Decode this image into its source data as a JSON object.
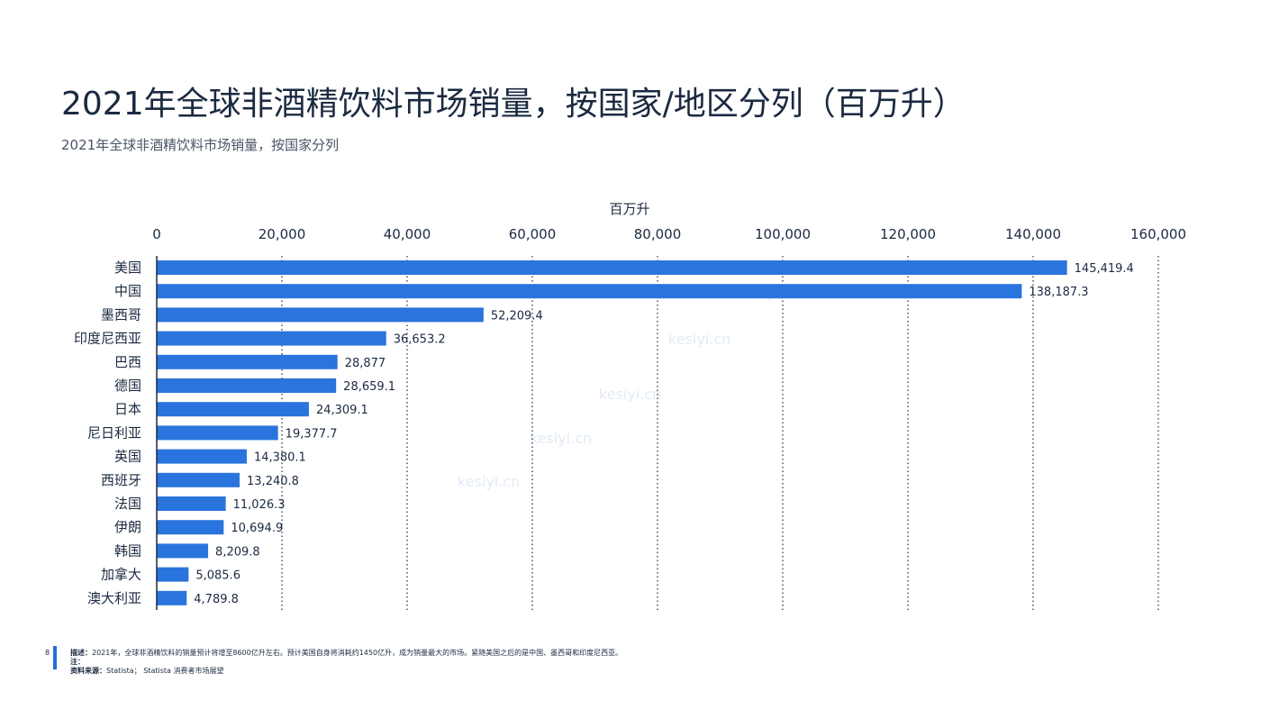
{
  "title": "2021年全球非酒精饮料市场销量，按国家/地区分列（百万升）",
  "subtitle": "2021年全球非酒精饮料市场销量，按国家分列",
  "chart_data": {
    "type": "bar",
    "orientation": "horizontal",
    "xlabel": "百万升",
    "xlim": [
      0,
      160000
    ],
    "xticks": [
      0,
      20000,
      40000,
      60000,
      80000,
      100000,
      120000,
      140000,
      160000
    ],
    "xtick_labels": [
      "0",
      "20,000",
      "40,000",
      "60,000",
      "80,000",
      "100,000",
      "120,000",
      "140,000",
      "160,000"
    ],
    "grid": "vertical dotted",
    "bar_color": "#2a74dd",
    "categories": [
      "美国",
      "中国",
      "墨西哥",
      "印度尼西亚",
      "巴西",
      "德国",
      "日本",
      "尼日利亚",
      "英国",
      "西班牙",
      "法国",
      "伊朗",
      "韩国",
      "加拿大",
      "澳大利亚"
    ],
    "values": [
      145419.4,
      138187.3,
      52209.4,
      36653.2,
      28877,
      28659.1,
      24309.1,
      19377.7,
      14380.1,
      13240.8,
      11026.3,
      10694.9,
      8209.8,
      5085.6,
      4789.8
    ],
    "value_labels": [
      "145,419.4",
      "138,187.3",
      "52,209.4",
      "36,653.2",
      "28,877",
      "28,659.1",
      "24,309.1",
      "19,377.7",
      "14,380.1",
      "13,240.8",
      "11,026.3",
      "10,694.9",
      "8,209.8",
      "5,085.6",
      "4,789.8"
    ]
  },
  "footer": {
    "page_number": "8",
    "description_label": "描述：",
    "description": "2021年，全球非酒精饮料的销量预计将增至8600亿升左右。预计美国自身将消耗约1450亿升，成为销量最大的市场。紧随美国之后的是中国、墨西哥和印度尼西亚。",
    "note_label": "注：",
    "source_label": "资料来源：",
    "source": "Statista； Statista 消费者市场展望"
  },
  "watermark": {
    "text": "kesiyi.cn"
  }
}
